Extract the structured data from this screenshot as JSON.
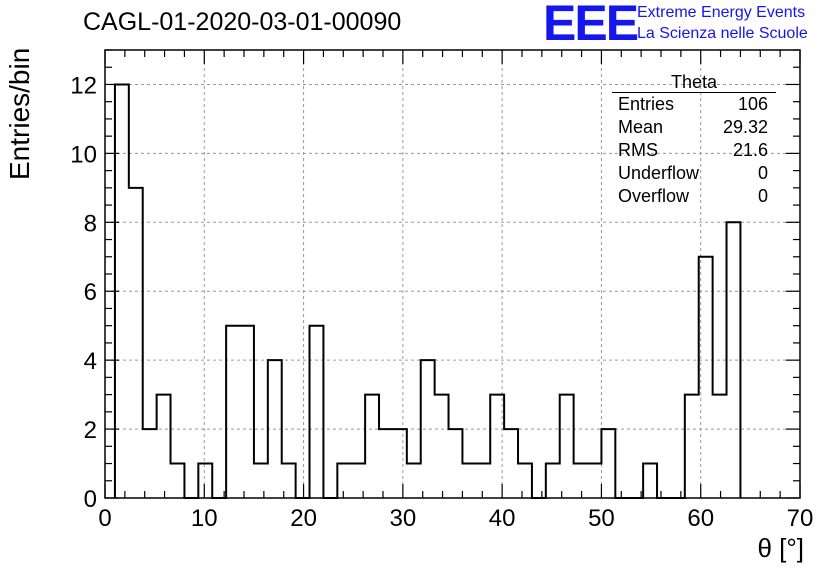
{
  "title": "CAGL-01-2020-03-01-00090",
  "logo": {
    "mark": "EEE",
    "line1": "Extreme Energy Events",
    "line2": "La Scienza nelle Scuole",
    "color": "#1515ee"
  },
  "stats": {
    "title": "Theta",
    "rows": [
      {
        "label": "Entries",
        "value": "106"
      },
      {
        "label": "Mean",
        "value": "29.32"
      },
      {
        "label": "RMS",
        "value": "21.6"
      },
      {
        "label": "Underflow",
        "value": "0"
      },
      {
        "label": "Overflow",
        "value": "0"
      }
    ]
  },
  "chart_data": {
    "type": "histogram",
    "xlabel": "θ [°]",
    "ylabel": "Entries/bin",
    "xlim": [
      0,
      70
    ],
    "ylim": [
      0,
      13
    ],
    "xticks": [
      0,
      10,
      20,
      30,
      40,
      50,
      60,
      70
    ],
    "yticks": [
      0,
      2,
      4,
      6,
      8,
      10,
      12
    ],
    "grid": true,
    "bin_width": 1.4,
    "bin_start": 1.0,
    "counts": [
      12,
      9,
      2,
      3,
      1,
      0,
      1,
      0,
      5,
      5,
      1,
      4,
      1,
      0,
      5,
      0,
      1,
      1,
      3,
      2,
      2,
      1,
      4,
      3,
      2,
      1,
      1,
      3,
      2,
      1,
      0,
      1,
      3,
      1,
      1,
      2,
      0,
      0,
      1,
      0,
      0,
      3,
      7,
      3,
      8
    ]
  }
}
